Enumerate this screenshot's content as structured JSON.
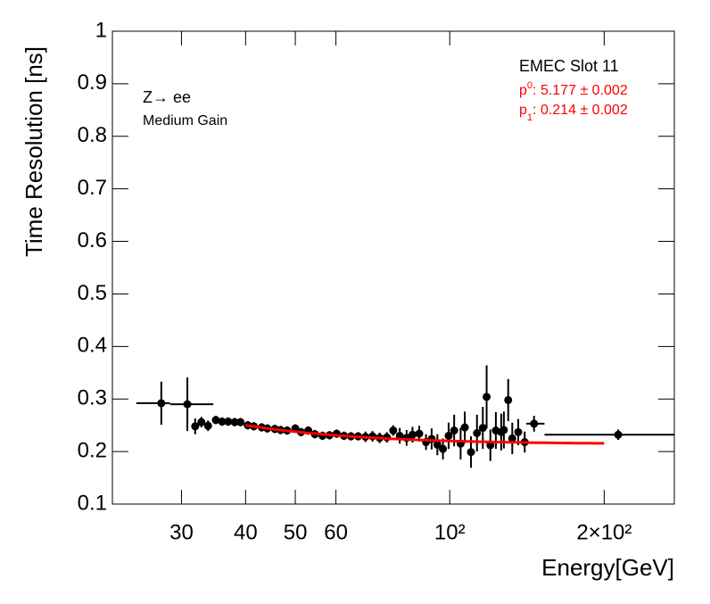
{
  "chart_data": {
    "type": "errorbar-scatter",
    "ylabel": "Time Resolution [ns]",
    "xlabel": "Energy[GeV]",
    "annotations": [
      "Z→ ee",
      "Medium Gain",
      "EMEC Slot 11"
    ],
    "log_x": true,
    "xlim": [
      22,
      274
    ],
    "ylim": [
      0.1,
      1
    ],
    "xticks": [
      30,
      40,
      50,
      60,
      {
        "value": 100,
        "label": "10²"
      },
      {
        "value": 200,
        "label": "2×10²"
      }
    ],
    "yticks": [
      0.1,
      0.2,
      0.3,
      0.4,
      0.5,
      0.6,
      0.7,
      0.8,
      0.9,
      1
    ],
    "series": [
      {
        "color": "#000000",
        "x": [
          27.4,
          30.8,
          31.9,
          32.8,
          33.8,
          35.0,
          36.0,
          37.0,
          38.1,
          39.1,
          40.4,
          41.5,
          43.0,
          44.1,
          45.6,
          46.8,
          48.2,
          50.0,
          51.3,
          53.0,
          54.6,
          56.5,
          58.3,
          60.2,
          62.2,
          64.2,
          66.3,
          68.5,
          70.7,
          73.0,
          75.4,
          77.6,
          79.9,
          82.4,
          84.6,
          87.2,
          89.9,
          92.2,
          94.6,
          97.0,
          99.5,
          102,
          105,
          107,
          110,
          113,
          116,
          118,
          120,
          123,
          126,
          127.5,
          130,
          132.4,
          136,
          140,
          146,
          213
        ],
        "values": [
          0.292,
          0.29,
          0.248,
          0.256,
          0.249,
          0.26,
          0.257,
          0.257,
          0.256,
          0.256,
          0.25,
          0.248,
          0.246,
          0.244,
          0.243,
          0.241,
          0.24,
          0.244,
          0.237,
          0.24,
          0.233,
          0.23,
          0.231,
          0.234,
          0.23,
          0.229,
          0.229,
          0.228,
          0.229,
          0.226,
          0.227,
          0.24,
          0.23,
          0.226,
          0.232,
          0.234,
          0.218,
          0.224,
          0.213,
          0.205,
          0.23,
          0.24,
          0.215,
          0.246,
          0.199,
          0.235,
          0.245,
          0.304,
          0.212,
          0.24,
          0.237,
          0.241,
          0.298,
          0.225,
          0.237,
          0.218,
          0.253,
          0.232
        ],
        "yerr": [
          0.041,
          0.051,
          0.015,
          0.01,
          0.01,
          0.008,
          0.008,
          0.008,
          0.008,
          0.008,
          0.008,
          0.008,
          0.008,
          0.008,
          0.008,
          0.008,
          0.008,
          0.008,
          0.008,
          0.008,
          0.008,
          0.008,
          0.008,
          0.008,
          0.008,
          0.008,
          0.008,
          0.01,
          0.01,
          0.01,
          0.01,
          0.01,
          0.015,
          0.015,
          0.015,
          0.015,
          0.015,
          0.02,
          0.02,
          0.02,
          0.025,
          0.03,
          0.03,
          0.03,
          0.03,
          0.035,
          0.04,
          0.06,
          0.03,
          0.035,
          0.035,
          0.035,
          0.04,
          0.03,
          0.025,
          0.02,
          0.015,
          0.01
        ],
        "xlow": [
          24.5,
          28.5,
          null,
          null,
          null,
          null,
          null,
          null,
          null,
          null,
          null,
          null,
          null,
          null,
          null,
          null,
          null,
          null,
          null,
          null,
          null,
          null,
          null,
          null,
          null,
          null,
          null,
          null,
          null,
          null,
          null,
          null,
          null,
          null,
          null,
          null,
          null,
          null,
          null,
          null,
          null,
          null,
          null,
          null,
          null,
          null,
          null,
          null,
          null,
          null,
          null,
          null,
          null,
          null,
          null,
          null,
          141,
          153
        ],
        "xhigh": [
          28.5,
          34.6,
          null,
          null,
          null,
          null,
          null,
          null,
          null,
          null,
          null,
          null,
          null,
          null,
          null,
          null,
          null,
          null,
          null,
          null,
          null,
          null,
          null,
          null,
          null,
          null,
          null,
          null,
          null,
          null,
          null,
          null,
          null,
          null,
          null,
          null,
          null,
          null,
          null,
          null,
          null,
          null,
          null,
          null,
          null,
          null,
          null,
          null,
          null,
          null,
          null,
          null,
          null,
          null,
          null,
          null,
          153,
          274
        ]
      }
    ],
    "fit": {
      "color": "#ff0000",
      "range": [
        40,
        200
      ],
      "separator": ":",
      "plus_minus": "±",
      "params": [
        {
          "symbol": "p",
          "index": "0",
          "value": 5.177,
          "error": 0.002
        },
        {
          "symbol": "p",
          "index": "1",
          "value": 0.214,
          "error": 0.002
        }
      ]
    }
  }
}
